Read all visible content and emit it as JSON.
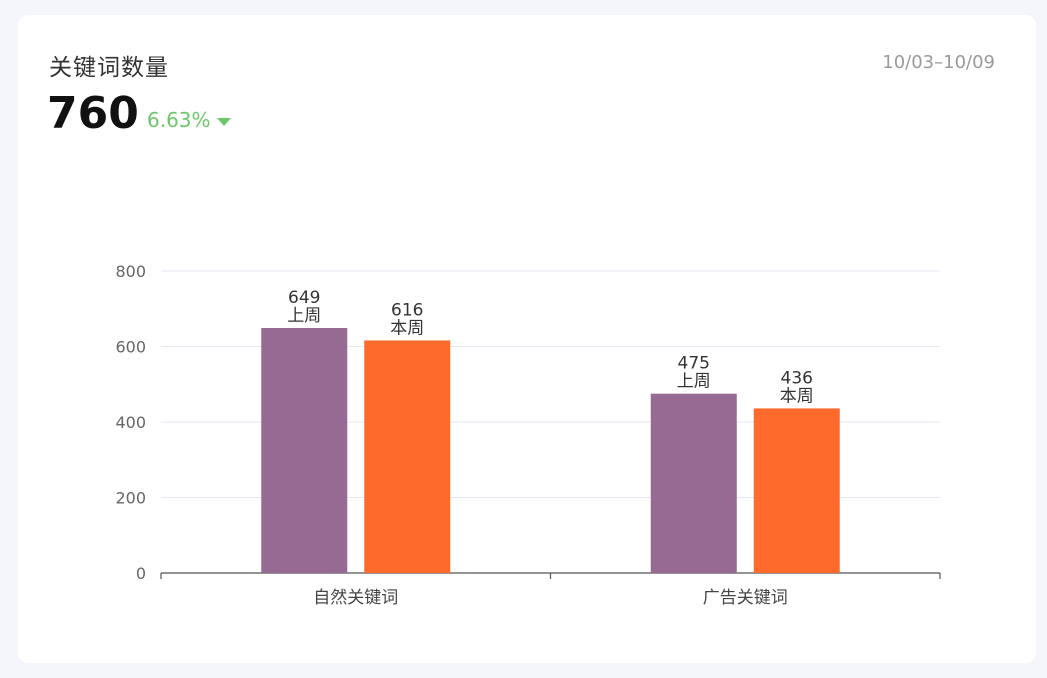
{
  "header": {
    "title": "关键词数量",
    "date_range": "10/03–10/09",
    "total": "760",
    "change": "6.63%",
    "trend": "down"
  },
  "colors": {
    "last_week": "#966a92",
    "this_week": "#fd6a2b",
    "trend_down": "#6cc76a"
  },
  "chart_data": {
    "type": "bar",
    "categories": [
      "自然关键词",
      "广告关键词"
    ],
    "series": [
      {
        "name": "上周",
        "values": [
          649,
          475
        ]
      },
      {
        "name": "本周",
        "values": [
          616,
          436
        ]
      }
    ],
    "yticks": [
      "0",
      "200",
      "400",
      "600",
      "800"
    ],
    "ylim": [
      0,
      800
    ],
    "grid": true,
    "legend": "none"
  }
}
